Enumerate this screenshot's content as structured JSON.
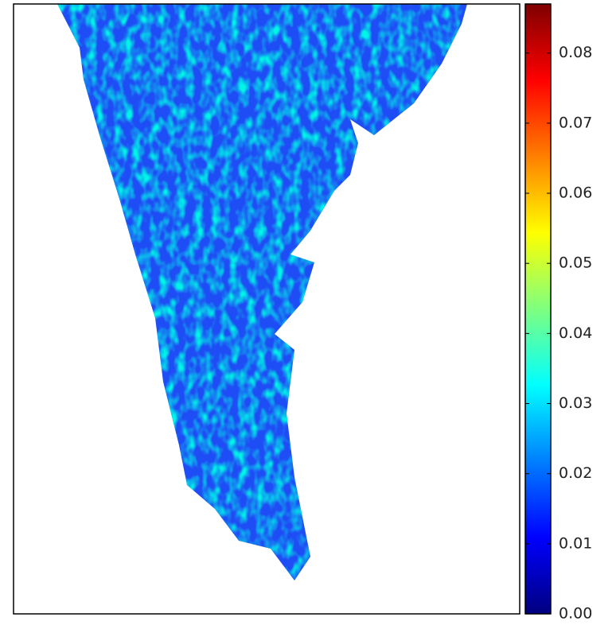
{
  "chart_data": {
    "type": "heatmap",
    "colormap": "jet",
    "clim": [
      0,
      0.087
    ],
    "cticks": [
      {
        "value": 0,
        "label": "0.00"
      },
      0.01,
      0.02,
      0.03,
      0.04,
      0.05,
      0.06,
      0.07,
      0.08
    ]
  }
}
